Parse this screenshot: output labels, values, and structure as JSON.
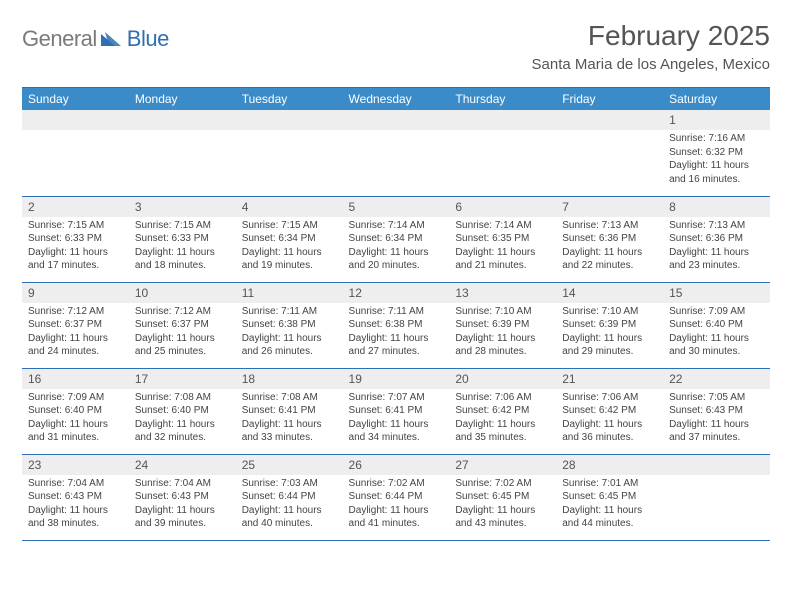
{
  "brand": {
    "first": "General",
    "second": "Blue"
  },
  "title": "February 2025",
  "location": "Santa Maria de los Angeles, Mexico",
  "colors": {
    "header_bg": "#3b8bc9",
    "header_border": "#2f6fb3",
    "daynum_bg": "#eeeeee",
    "text": "#444444",
    "title_text": "#555555"
  },
  "weekdays": [
    "Sunday",
    "Monday",
    "Tuesday",
    "Wednesday",
    "Thursday",
    "Friday",
    "Saturday"
  ],
  "weeks": [
    [
      {
        "day": "",
        "empty": true
      },
      {
        "day": "",
        "empty": true
      },
      {
        "day": "",
        "empty": true
      },
      {
        "day": "",
        "empty": true
      },
      {
        "day": "",
        "empty": true
      },
      {
        "day": "",
        "empty": true
      },
      {
        "day": "1",
        "sunrise": "Sunrise: 7:16 AM",
        "sunset": "Sunset: 6:32 PM",
        "daylight1": "Daylight: 11 hours",
        "daylight2": "and 16 minutes."
      }
    ],
    [
      {
        "day": "2",
        "sunrise": "Sunrise: 7:15 AM",
        "sunset": "Sunset: 6:33 PM",
        "daylight1": "Daylight: 11 hours",
        "daylight2": "and 17 minutes."
      },
      {
        "day": "3",
        "sunrise": "Sunrise: 7:15 AM",
        "sunset": "Sunset: 6:33 PM",
        "daylight1": "Daylight: 11 hours",
        "daylight2": "and 18 minutes."
      },
      {
        "day": "4",
        "sunrise": "Sunrise: 7:15 AM",
        "sunset": "Sunset: 6:34 PM",
        "daylight1": "Daylight: 11 hours",
        "daylight2": "and 19 minutes."
      },
      {
        "day": "5",
        "sunrise": "Sunrise: 7:14 AM",
        "sunset": "Sunset: 6:34 PM",
        "daylight1": "Daylight: 11 hours",
        "daylight2": "and 20 minutes."
      },
      {
        "day": "6",
        "sunrise": "Sunrise: 7:14 AM",
        "sunset": "Sunset: 6:35 PM",
        "daylight1": "Daylight: 11 hours",
        "daylight2": "and 21 minutes."
      },
      {
        "day": "7",
        "sunrise": "Sunrise: 7:13 AM",
        "sunset": "Sunset: 6:36 PM",
        "daylight1": "Daylight: 11 hours",
        "daylight2": "and 22 minutes."
      },
      {
        "day": "8",
        "sunrise": "Sunrise: 7:13 AM",
        "sunset": "Sunset: 6:36 PM",
        "daylight1": "Daylight: 11 hours",
        "daylight2": "and 23 minutes."
      }
    ],
    [
      {
        "day": "9",
        "sunrise": "Sunrise: 7:12 AM",
        "sunset": "Sunset: 6:37 PM",
        "daylight1": "Daylight: 11 hours",
        "daylight2": "and 24 minutes."
      },
      {
        "day": "10",
        "sunrise": "Sunrise: 7:12 AM",
        "sunset": "Sunset: 6:37 PM",
        "daylight1": "Daylight: 11 hours",
        "daylight2": "and 25 minutes."
      },
      {
        "day": "11",
        "sunrise": "Sunrise: 7:11 AM",
        "sunset": "Sunset: 6:38 PM",
        "daylight1": "Daylight: 11 hours",
        "daylight2": "and 26 minutes."
      },
      {
        "day": "12",
        "sunrise": "Sunrise: 7:11 AM",
        "sunset": "Sunset: 6:38 PM",
        "daylight1": "Daylight: 11 hours",
        "daylight2": "and 27 minutes."
      },
      {
        "day": "13",
        "sunrise": "Sunrise: 7:10 AM",
        "sunset": "Sunset: 6:39 PM",
        "daylight1": "Daylight: 11 hours",
        "daylight2": "and 28 minutes."
      },
      {
        "day": "14",
        "sunrise": "Sunrise: 7:10 AM",
        "sunset": "Sunset: 6:39 PM",
        "daylight1": "Daylight: 11 hours",
        "daylight2": "and 29 minutes."
      },
      {
        "day": "15",
        "sunrise": "Sunrise: 7:09 AM",
        "sunset": "Sunset: 6:40 PM",
        "daylight1": "Daylight: 11 hours",
        "daylight2": "and 30 minutes."
      }
    ],
    [
      {
        "day": "16",
        "sunrise": "Sunrise: 7:09 AM",
        "sunset": "Sunset: 6:40 PM",
        "daylight1": "Daylight: 11 hours",
        "daylight2": "and 31 minutes."
      },
      {
        "day": "17",
        "sunrise": "Sunrise: 7:08 AM",
        "sunset": "Sunset: 6:40 PM",
        "daylight1": "Daylight: 11 hours",
        "daylight2": "and 32 minutes."
      },
      {
        "day": "18",
        "sunrise": "Sunrise: 7:08 AM",
        "sunset": "Sunset: 6:41 PM",
        "daylight1": "Daylight: 11 hours",
        "daylight2": "and 33 minutes."
      },
      {
        "day": "19",
        "sunrise": "Sunrise: 7:07 AM",
        "sunset": "Sunset: 6:41 PM",
        "daylight1": "Daylight: 11 hours",
        "daylight2": "and 34 minutes."
      },
      {
        "day": "20",
        "sunrise": "Sunrise: 7:06 AM",
        "sunset": "Sunset: 6:42 PM",
        "daylight1": "Daylight: 11 hours",
        "daylight2": "and 35 minutes."
      },
      {
        "day": "21",
        "sunrise": "Sunrise: 7:06 AM",
        "sunset": "Sunset: 6:42 PM",
        "daylight1": "Daylight: 11 hours",
        "daylight2": "and 36 minutes."
      },
      {
        "day": "22",
        "sunrise": "Sunrise: 7:05 AM",
        "sunset": "Sunset: 6:43 PM",
        "daylight1": "Daylight: 11 hours",
        "daylight2": "and 37 minutes."
      }
    ],
    [
      {
        "day": "23",
        "sunrise": "Sunrise: 7:04 AM",
        "sunset": "Sunset: 6:43 PM",
        "daylight1": "Daylight: 11 hours",
        "daylight2": "and 38 minutes."
      },
      {
        "day": "24",
        "sunrise": "Sunrise: 7:04 AM",
        "sunset": "Sunset: 6:43 PM",
        "daylight1": "Daylight: 11 hours",
        "daylight2": "and 39 minutes."
      },
      {
        "day": "25",
        "sunrise": "Sunrise: 7:03 AM",
        "sunset": "Sunset: 6:44 PM",
        "daylight1": "Daylight: 11 hours",
        "daylight2": "and 40 minutes."
      },
      {
        "day": "26",
        "sunrise": "Sunrise: 7:02 AM",
        "sunset": "Sunset: 6:44 PM",
        "daylight1": "Daylight: 11 hours",
        "daylight2": "and 41 minutes."
      },
      {
        "day": "27",
        "sunrise": "Sunrise: 7:02 AM",
        "sunset": "Sunset: 6:45 PM",
        "daylight1": "Daylight: 11 hours",
        "daylight2": "and 43 minutes."
      },
      {
        "day": "28",
        "sunrise": "Sunrise: 7:01 AM",
        "sunset": "Sunset: 6:45 PM",
        "daylight1": "Daylight: 11 hours",
        "daylight2": "and 44 minutes."
      },
      {
        "day": "",
        "empty": true
      }
    ]
  ]
}
